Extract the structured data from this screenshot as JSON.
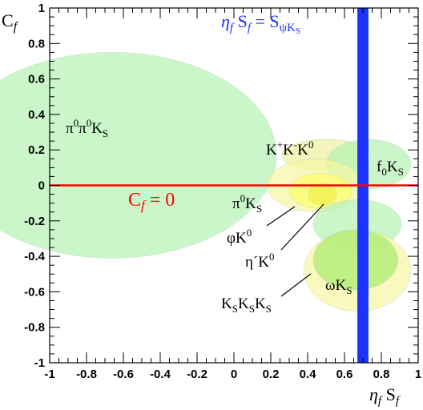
{
  "chart_data": {
    "type": "scatter",
    "xlabel": "ηf Sf",
    "ylabel": "Cf",
    "xlim": [
      -1,
      1
    ],
    "ylim": [
      -1,
      1
    ],
    "x_ticks": [
      "-1",
      "-0.8",
      "-0.6",
      "-0.4",
      "-0.2",
      "0",
      "0.2",
      "0.4",
      "0.6",
      "0.8",
      "1"
    ],
    "y_ticks": [
      "-1",
      "-0.8",
      "-0.6",
      "-0.4",
      "-0.2",
      "0",
      "0.2",
      "0.4",
      "0.6",
      "0.8",
      "1"
    ],
    "grid": false,
    "reference_lines": [
      {
        "orientation": "vertical",
        "label": "ηf Sf = SψKS",
        "x_min": 0.67,
        "x_max": 0.73,
        "color": "#1a33ff"
      },
      {
        "orientation": "horizontal",
        "label": "Cf = 0",
        "y": 0.0,
        "color": "#ff0000"
      }
    ],
    "regions": [
      {
        "label": "π0π0KS",
        "cx": -0.66,
        "cy": 0.17,
        "rx": 0.89,
        "ry": 0.58,
        "color": "#b3f2b3"
      },
      {
        "label": "K+K-K0",
        "cx": 0.5,
        "cy": 0.17,
        "rx": 0.24,
        "ry": 0.09,
        "color": "#ecf2a0"
      },
      {
        "label": "f0KS",
        "cx": 0.73,
        "cy": 0.12,
        "rx": 0.23,
        "ry": 0.14,
        "color": "#b3f2b3"
      },
      {
        "label": "π0KS",
        "cx": 0.44,
        "cy": 0.0,
        "rx": 0.26,
        "ry": 0.15,
        "color": "#f7f7a3"
      },
      {
        "label": "φK0",
        "cx": 0.47,
        "cy": -0.03,
        "rx": 0.17,
        "ry": 0.1,
        "color": "#ffff66"
      },
      {
        "label": "η´K0",
        "cx": 0.48,
        "cy": -0.05,
        "rx": 0.08,
        "ry": 0.06,
        "color": "#f0f04a"
      },
      {
        "label": "ωKS",
        "cx": 0.67,
        "cy": -0.22,
        "rx": 0.24,
        "ry": 0.14,
        "color": "#b3f2b3"
      },
      {
        "label": "KSKSKS",
        "cx": 0.67,
        "cy": -0.48,
        "rx": 0.29,
        "ry": 0.23,
        "color": "#f7f7a3"
      },
      {
        "label": "",
        "cx": 0.66,
        "cy": -0.42,
        "rx": 0.23,
        "ry": 0.17,
        "color": "#a8eb6e"
      }
    ]
  },
  "labels": {
    "ylabel_main": "C",
    "ylabel_sub": "f",
    "xlabel_main": "η",
    "xlabel_sub": "f",
    "xlabel_s": " S",
    "xlabel_s_sub": "f",
    "blue_eta": "η",
    "blue_f": "f",
    "blue_s": " S",
    "blue_f2": "f",
    "blue_eq": " = S",
    "blue_sub": "ψK",
    "blue_subsub": "S",
    "red_c": "C",
    "red_f": "f",
    "red_eq": " = 0",
    "pi0pi0ks_a": "π",
    "pi0pi0ks_b": "0",
    "pi0pi0ks_c": "π",
    "pi0pi0ks_d": "0",
    "pi0pi0ks_e": "K",
    "pi0pi0ks_f": "S",
    "kpkmk0_a": "K",
    "kpkmk0_b": "+",
    "kpkmk0_c": "K",
    "kpkmk0_d": "-",
    "kpkmk0_e": "K",
    "kpkmk0_f": "0",
    "f0ks_a": "f",
    "f0ks_b": "0",
    "f0ks_c": "K",
    "f0ks_d": "S",
    "pi0ks_a": "π",
    "pi0ks_b": "0",
    "pi0ks_c": "K",
    "pi0ks_d": "S",
    "phik0_a": "φK",
    "phik0_b": "0",
    "etak0_a": "η´K",
    "etak0_b": "0",
    "omegaks_a": "ωK",
    "omegaks_b": "S",
    "ksksks_a": "K",
    "ksksks_b": "S",
    "ksksks_c": "K",
    "ksksks_d": "S",
    "ksksks_e": "K",
    "ksksks_f": "S"
  }
}
